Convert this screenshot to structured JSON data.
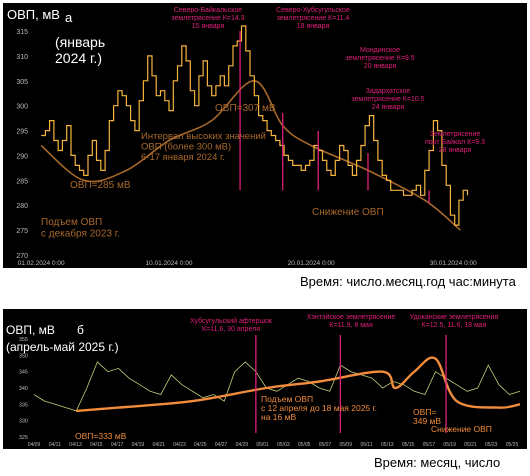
{
  "colors": {
    "background": "#000000",
    "series": "#f5b53c",
    "envelope": "#a8682a",
    "event_line": "#e0207a",
    "event_text": "#e0207a",
    "note": "#a8682a",
    "axis_text": "#bbbbbb",
    "label_white": "#ffffff",
    "series_b": "#c8cc78",
    "envelope_b": "#f08c3c"
  },
  "chart_data": [
    {
      "type": "line",
      "panel": "а",
      "ylabel": "ОВП, мВ",
      "period_label": "(январь\n2024 г.)",
      "xlabel": "Время: число.месяц.год  час:минута",
      "ylim": [
        270,
        315
      ],
      "y_ticks": [
        270,
        275,
        280,
        285,
        290,
        295,
        300,
        305,
        310,
        315
      ],
      "x_ticks": [
        "01.02.2024 0:00",
        "10.01.2024 0:00",
        "20.01.2024 0:00",
        "30.01.2024 0:00"
      ],
      "x_days": [
        1,
        10,
        20,
        30
      ],
      "xlim_days": [
        0.5,
        33.5
      ],
      "grid": false,
      "series": [
        {
          "x": [
            1.0,
            1.3,
            1.6,
            1.9,
            2.2,
            2.5,
            2.8,
            3.1,
            3.4,
            3.7,
            4.0,
            4.3,
            4.6,
            4.9,
            5.2,
            5.5,
            5.8,
            6.1,
            6.4,
            6.7,
            7.0,
            7.3,
            7.6,
            7.9,
            8.2,
            8.5,
            8.8,
            9.1,
            9.4,
            9.7,
            10.0,
            10.3,
            10.6,
            10.9,
            11.2,
            11.5,
            11.8,
            12.1,
            12.4,
            12.7,
            13.0,
            13.3,
            13.6,
            13.9,
            14.2,
            14.5,
            14.8,
            15.1,
            15.4,
            15.7,
            16.0,
            16.3,
            16.6,
            16.9,
            17.2,
            17.5,
            17.8,
            18.1,
            18.4,
            18.7,
            19.0,
            19.3,
            19.6,
            19.9,
            20.2,
            20.5,
            20.8,
            21.1,
            21.4,
            21.7,
            22.0,
            22.3,
            22.6,
            22.9,
            23.2,
            23.5,
            23.8,
            24.1,
            24.4,
            24.7,
            25.0,
            25.3,
            25.6,
            25.9,
            26.2,
            26.5,
            26.8,
            27.1,
            27.4,
            27.7,
            28.0,
            28.3,
            28.6,
            28.9,
            29.2,
            29.5,
            29.8,
            30.1,
            30.4,
            30.7,
            31.0
          ],
          "y": [
            294,
            295,
            297,
            293,
            291,
            293,
            296,
            290,
            288,
            287,
            286,
            290,
            293,
            289,
            287,
            291,
            297,
            300,
            303,
            302,
            300,
            297,
            295,
            301,
            305,
            310,
            306,
            302,
            303,
            301,
            299,
            305,
            308,
            312,
            309,
            303,
            300,
            306,
            309,
            304,
            302,
            304,
            306,
            304,
            308,
            312,
            313,
            316,
            311,
            306,
            302,
            298,
            297,
            295,
            294,
            293,
            292,
            290,
            289,
            288,
            288,
            287,
            288,
            289,
            292,
            291,
            289,
            287,
            286,
            289,
            292,
            291,
            288,
            286,
            289,
            292,
            296,
            298,
            293,
            289,
            286,
            285,
            283,
            283,
            283,
            282,
            282,
            283,
            284,
            282,
            287,
            291,
            297,
            295,
            288,
            284,
            278,
            276,
            281,
            283,
            282
          ]
        }
      ],
      "envelope": {
        "x": [
          1,
          4,
          7,
          10,
          13,
          16,
          18,
          20,
          24,
          28,
          30.5
        ],
        "y": [
          292,
          285,
          287,
          293,
          297,
          305,
          296,
          292,
          287,
          281,
          275
        ]
      },
      "annotations": [
        {
          "text": "ОВП=285 мВ",
          "x": 4.5,
          "y": 283.5
        },
        {
          "text": "ОВП=307 мВ",
          "x": 13,
          "y": 301.5
        },
        {
          "text": "Интервал высоких значений\nОВП (более 300 мВ)\n6-17 января 2024 г.",
          "x": 8.3,
          "y": 296.5
        },
        {
          "text": "Подъем ОВП\nс декабря 2023 г.",
          "x": 1,
          "y": 276
        },
        {
          "text": "Снижение ОВП",
          "x": 21.5,
          "y": 280.5
        }
      ],
      "events": [
        {
          "text": "Северо-Байкальское\nземлетрясение К=14.3\n15 января",
          "x": 15.0
        },
        {
          "text": "Северо-Хубсугульское\nземлетрясение К=11.4\n18 января",
          "x": 18.0
        },
        {
          "text": "Мондинское\nземлетрясение К=9.5\n20 января",
          "x": 20.5
        },
        {
          "text": "Задархатское\nземлетрясение К=10.5\n24 января",
          "x": 24.0
        },
        {
          "text": "Землетрясение\nпорт Байкал К=9.3\n28 января",
          "x": 28.3
        }
      ]
    },
    {
      "type": "line",
      "panel": "б",
      "ylabel": "ОВП, мВ",
      "period_label": "(апрель-май 2025 г.)",
      "xlabel": "Время: месяц, число",
      "ylim": [
        325,
        355
      ],
      "y_ticks": [
        325,
        330,
        335,
        340,
        345,
        350,
        355
      ],
      "x_ticks": [
        "04/09",
        "04/11",
        "04/13",
        "04/15",
        "04/17",
        "04/19",
        "04/21",
        "04/23",
        "04/25",
        "04/27",
        "04/29",
        "05/01",
        "05/03",
        "05/05",
        "05/07",
        "05/09",
        "05/11",
        "05/13",
        "05/15",
        "05/17",
        "05/19",
        "05/21",
        "05/23",
        "05/25"
      ],
      "grid": false,
      "series": [
        {
          "x": [
            0,
            1,
            2,
            3,
            4,
            5,
            6,
            7,
            8,
            9,
            10,
            11,
            12,
            13,
            14,
            15,
            16,
            17,
            18,
            19,
            20,
            21,
            22,
            23,
            24,
            25,
            26,
            27,
            28,
            29,
            30,
            31,
            32,
            33,
            34,
            35,
            36,
            37,
            38,
            39,
            40,
            41,
            42,
            43,
            44,
            45,
            46
          ],
          "y": [
            338,
            336,
            335,
            334,
            333,
            340,
            348,
            345,
            346,
            343,
            341,
            339,
            338,
            344,
            341,
            339,
            337,
            338,
            336,
            345,
            348,
            345,
            340,
            339,
            341,
            343,
            342,
            340,
            339,
            347,
            345,
            344,
            343,
            340,
            342,
            341,
            339,
            338,
            345,
            343,
            341,
            339,
            340,
            347,
            341,
            338,
            339
          ]
        }
      ],
      "envelope": {
        "x": [
          4,
          8,
          15,
          22,
          27,
          33,
          34.2,
          36,
          38,
          40,
          44,
          46
        ],
        "y": [
          333,
          334,
          336,
          340,
          342,
          345,
          340,
          345,
          349,
          336,
          334,
          335
        ]
      },
      "annotations": [
        {
          "text": "ОВП=333 мВ",
          "x": 3,
          "y": 328
        },
        {
          "text": "Подъем ОВП\nс 12 апреля до 18 мая 2025 г.\nна 16 мВ",
          "x": 20,
          "y": 338
        },
        {
          "text": "ОВП=\n349 мВ",
          "x": 35.5,
          "y": 343
        },
        {
          "text": "Снижение ОВП",
          "x": 40.3,
          "y": 333
        }
      ],
      "events": [
        {
          "text": "Хубсугульский афтершок\nК=11.6, 30 апреля",
          "x": 21.0
        },
        {
          "text": "Хэнтэйское землетрясение\nК=11.9, 8 мая",
          "x": 29.0
        },
        {
          "text": "Удоканские землетрясения\nК=12.5, 11.6, 18 мая",
          "x": 39.0
        }
      ]
    }
  ]
}
